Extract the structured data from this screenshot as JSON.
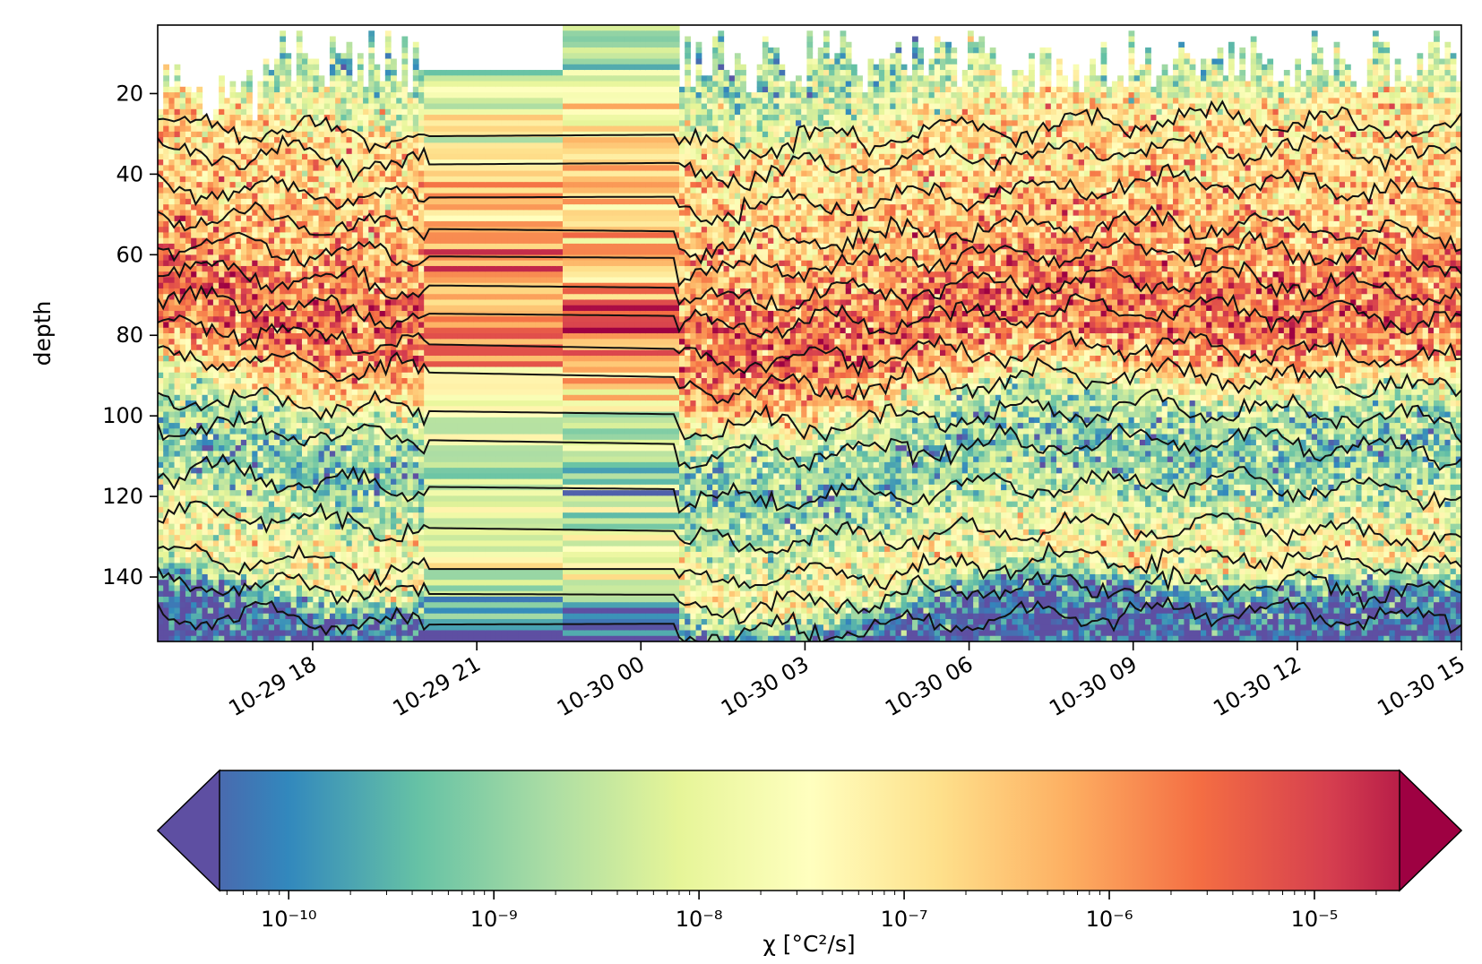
{
  "chart_data": {
    "type": "heatmap",
    "title": "",
    "xlabel": "",
    "ylabel": "depth",
    "x_axis": {
      "ticks": [
        "10-29 18",
        "10-29 21",
        "10-30 00",
        "10-30 03",
        "10-30 06",
        "10-30 09",
        "10-30 12",
        "10-30 15"
      ],
      "range": [
        "10-29 15:10",
        "10-30 15:00"
      ]
    },
    "y_axis": {
      "ticks": [
        20,
        40,
        60,
        80,
        100,
        120,
        140
      ],
      "range": [
        156,
        3
      ],
      "inverted": true
    },
    "colorbar": {
      "label": "χ [°C²/s]",
      "scale": "log",
      "colormap": "Spectral_r",
      "range": [
        4.6e-11,
        2.6e-05
      ],
      "ticks": [
        "10⁻¹⁰",
        "10⁻⁹",
        "10⁻⁸",
        "10⁻⁷",
        "10⁻⁶",
        "10⁻⁵"
      ],
      "extend": "both",
      "colors": [
        "#5e4fa2",
        "#3288bd",
        "#66c2a5",
        "#abdda4",
        "#e6f598",
        "#ffffbf",
        "#fee08b",
        "#fdae61",
        "#f46d43",
        "#d53e4f",
        "#9e0142"
      ]
    },
    "depth_profile_log10_chi": [
      {
        "depth": 10,
        "value": -8.6
      },
      {
        "depth": 20,
        "value": -8.0
      },
      {
        "depth": 30,
        "value": -7.0
      },
      {
        "depth": 45,
        "value": -6.8
      },
      {
        "depth": 60,
        "value": -6.4
      },
      {
        "depth": 72,
        "value": -5.8
      },
      {
        "depth": 82,
        "value": -5.8
      },
      {
        "depth": 92,
        "value": -6.8
      },
      {
        "depth": 100,
        "value": -8.2
      },
      {
        "depth": 112,
        "value": -9.0
      },
      {
        "depth": 122,
        "value": -8.4
      },
      {
        "depth": 132,
        "value": -7.6
      },
      {
        "depth": 140,
        "value": -7.4
      },
      {
        "depth": 148,
        "value": -9.6
      },
      {
        "depth": 156,
        "value": -10.2
      }
    ],
    "isotherm_count": 16,
    "isotherm_start_depths": [
      31,
      38,
      46,
      53,
      60,
      67,
      74,
      81,
      88,
      98,
      105,
      117,
      127,
      138,
      144,
      152
    ],
    "isotherm_end_depths": [
      29,
      36,
      45,
      56,
      62,
      70,
      77,
      87,
      94,
      102,
      110,
      120,
      131,
      138,
      145,
      151
    ],
    "gap_interval": [
      "10-29 22:40",
      "10-30 00:40"
    ]
  }
}
